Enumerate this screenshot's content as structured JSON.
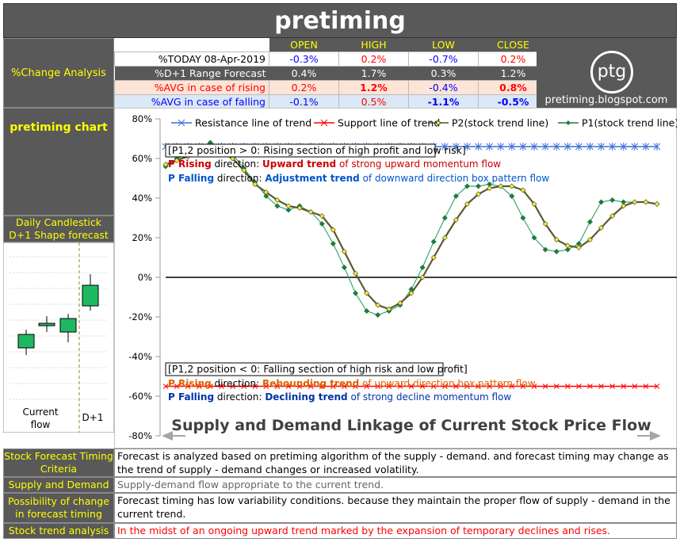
{
  "title": "pretiming",
  "change_analysis": {
    "label": "%Change Analysis",
    "headers": [
      "OPEN",
      "HIGH",
      "LOW",
      "CLOSE"
    ],
    "rows": [
      {
        "label": "%TODAY 08-Apr-2019",
        "values": [
          "-0.3%",
          "0.2%",
          "-0.7%",
          "0.2%"
        ]
      },
      {
        "label": "%D+1 Range Forecast",
        "values": [
          "0.4%",
          "1.7%",
          "0.3%",
          "1.2%"
        ]
      },
      {
        "label": "%AVG in case of rising",
        "values": [
          "0.2%",
          "1.2%",
          "-0.4%",
          "0.8%"
        ]
      },
      {
        "label": "%AVG in case of falling",
        "values": [
          "-0.1%",
          "0.5%",
          "-1.1%",
          "-0.5%"
        ]
      }
    ]
  },
  "logo": {
    "mark": "ptg",
    "url": "pretiming.blogspot.com"
  },
  "pretiming_chart_label": "pretiming chart",
  "candle_panel": {
    "title": "Daily Candlestick D+1 Shape forecast",
    "current_label": "Current flow",
    "next_label": "D+1"
  },
  "chart_data": {
    "type": "line",
    "ylim": [
      -80,
      80
    ],
    "yticks": [
      "80%",
      "60%",
      "40%",
      "20%",
      "0%",
      "-20%",
      "-40%",
      "-60%",
      "-80%"
    ],
    "legend": [
      {
        "name": "Resistance line of trend",
        "color": "#3a6fd8"
      },
      {
        "name": "Support line of trend",
        "color": "#ff0000"
      },
      {
        "name": "P2(stock trend line)",
        "color": "#4d4d2a"
      },
      {
        "name": "P1(stock trend line)",
        "color": "#1f7a3f"
      }
    ],
    "resistance": 66,
    "support": -55,
    "p1": [
      56,
      60,
      62,
      65,
      68,
      66,
      62,
      55,
      48,
      41,
      36,
      34,
      36,
      33,
      27,
      17,
      5,
      -8,
      -17,
      -19,
      -17,
      -14,
      -6,
      5,
      18,
      30,
      41,
      46,
      46,
      47,
      46,
      41,
      30,
      20,
      14,
      13,
      14,
      17,
      28,
      38,
      39,
      38,
      38,
      38,
      37
    ],
    "p2": [
      57,
      59,
      61,
      63,
      64,
      63,
      60,
      54,
      47,
      43,
      39,
      36,
      35,
      33,
      31,
      24,
      13,
      2,
      -8,
      -14,
      -16,
      -13,
      -8,
      0,
      10,
      20,
      29,
      37,
      42,
      45,
      46,
      46,
      44,
      37,
      27,
      19,
      16,
      15,
      19,
      25,
      31,
      36,
      38,
      38,
      37
    ],
    "text_upper": {
      "heading": "[P1,2 position > 0: Rising section of high profit and low risk]",
      "line1_prefix": "P Rising",
      "line1_mid": " direction: ",
      "line1_trend": "Upward trend",
      "line1_suffix": " of strong upward momentum flow",
      "line2_prefix": "P Falling",
      "line2_mid": " direction: ",
      "line2_trend": "Adjustment trend",
      "line2_suffix": " of downward direction box pattern flow"
    },
    "text_lower": {
      "heading": "[P1,2 position < 0: Falling section of high risk and low profit]",
      "line1_prefix": "P Rising",
      "line1_mid": " direction: ",
      "line1_trend": "Rebounding trend",
      "line1_suffix": " of upward direction box pattern flow",
      "line2_prefix": "P Falling",
      "line2_mid": " direction: ",
      "line2_trend": "Declining trend",
      "line2_suffix": " of strong decline momentum flow"
    },
    "bottom_caption": "Supply and Demand Linkage of Current Stock Price Flow"
  },
  "bottom": [
    {
      "label": "Stock Forecast Timing Criteria",
      "text": "Forecast is analyzed based on pretiming algorithm of the supply - demand. and forecast timing may change as the trend of supply - demand changes or increased volatility.",
      "color": "#000000"
    },
    {
      "label": "Supply and Demand",
      "text": "Supply-demand flow appropriate to the current trend.",
      "color": "#666666"
    },
    {
      "label": "Possibility of change in forecast timing",
      "text": "Forecast timing has low variability conditions. because they maintain the proper flow of supply - demand in the current trend.",
      "color": "#000000"
    },
    {
      "label": "Stock trend analysis",
      "text": "In the midst of an ongoing upward trend marked by the expansion of temporary declines and rises.",
      "color": "#ff0000"
    }
  ]
}
